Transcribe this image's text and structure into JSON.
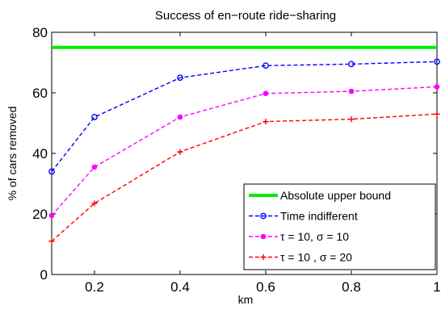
{
  "chart_data": {
    "type": "line",
    "title": "Success of en−route ride−sharing",
    "xlabel": "km",
    "ylabel": "% of cars removed",
    "xlim": [
      0.1,
      1.0
    ],
    "ylim": [
      0,
      80
    ],
    "x_ticks": [
      {
        "value": 0.2,
        "label": "0.2"
      },
      {
        "value": 0.4,
        "label": "0.4"
      },
      {
        "value": 0.6,
        "label": "0.6"
      },
      {
        "value": 0.8,
        "label": "0.8"
      },
      {
        "value": 1.0,
        "label": "1"
      }
    ],
    "y_ticks": [
      {
        "value": 0,
        "label": "0"
      },
      {
        "value": 20,
        "label": "20"
      },
      {
        "value": 40,
        "label": "40"
      },
      {
        "value": 60,
        "label": "60"
      },
      {
        "value": 80,
        "label": "80"
      }
    ],
    "grid": false,
    "legend_position": "bottom-right",
    "series": [
      {
        "name": "Absolute upper bound",
        "color": "#00ee00",
        "style": "solid",
        "marker": "none",
        "x": [
          0.1,
          1.0
        ],
        "values": [
          75,
          75
        ]
      },
      {
        "name": "Time indifferent",
        "color": "#0000ff",
        "style": "dashed",
        "marker": "circle",
        "x": [
          0.1,
          0.2,
          0.4,
          0.6,
          0.8,
          1.0
        ],
        "values": [
          34,
          52,
          65,
          69,
          69.5,
          70.3
        ]
      },
      {
        "name": "τ = 10, σ = 10",
        "color": "#ff00ff",
        "style": "dashed",
        "marker": "dot",
        "x": [
          0.1,
          0.2,
          0.4,
          0.6,
          0.8,
          1.0
        ],
        "values": [
          19.5,
          35.5,
          52,
          59.8,
          60.5,
          62
        ]
      },
      {
        "name": "τ = 10 , σ = 20",
        "color": "#ff0000",
        "style": "dashed",
        "marker": "plus",
        "x": [
          0.1,
          0.2,
          0.4,
          0.6,
          0.8,
          1.0
        ],
        "values": [
          11,
          23.5,
          40.5,
          50.5,
          51.3,
          53
        ]
      }
    ]
  }
}
